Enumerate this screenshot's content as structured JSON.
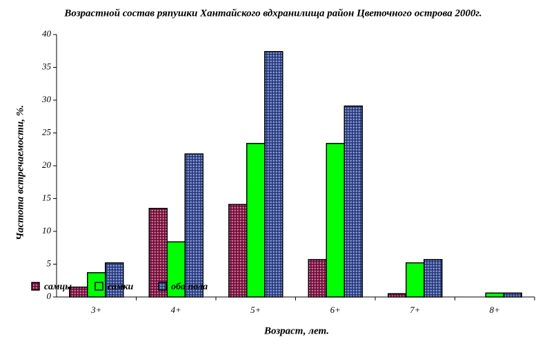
{
  "chart_data": {
    "type": "bar",
    "title": "Возрастной состав ряпушки Хантайского вдхранилища район Цветочного острова 2000г.",
    "x_label": "Возраст, лет.",
    "y_label": "Частота встречаемости, %.",
    "categories": [
      "3+",
      "4+",
      "5+",
      "6+",
      "7+",
      "8+"
    ],
    "series": [
      {
        "name": "самцы",
        "color": "#8b1a4a",
        "pattern": true,
        "values": [
          1.5,
          13.5,
          14.1,
          5.7,
          0.5,
          0
        ]
      },
      {
        "name": "самки",
        "color": "#00ff00",
        "pattern": false,
        "values": [
          3.7,
          8.4,
          23.4,
          23.4,
          5.2,
          0.6
        ]
      },
      {
        "name": "оба пола",
        "color": "#3a4f9a",
        "pattern": true,
        "values": [
          5.2,
          21.8,
          37.4,
          29.1,
          5.7,
          0.6
        ]
      }
    ],
    "ylim": [
      0,
      40
    ],
    "yticks": [
      0,
      5,
      10,
      15,
      20,
      25,
      30,
      35,
      40
    ],
    "grid": false
  }
}
